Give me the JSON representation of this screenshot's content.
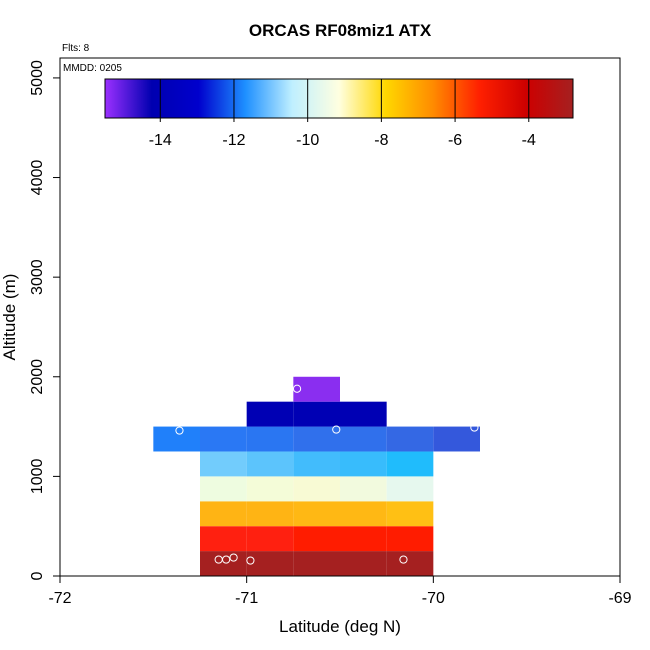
{
  "chart_data": {
    "type": "heatmap",
    "title": "ORCAS RF08miz1 ATX",
    "xlabel": "Latitude (deg N)",
    "ylabel": "Altitude (m)",
    "xlim": [
      -72,
      -69
    ],
    "ylim": [
      0,
      5200
    ],
    "x_ticks": [
      -72,
      -71,
      -70,
      -69
    ],
    "y_ticks": [
      0,
      1000,
      2000,
      3000,
      4000,
      5000
    ],
    "note_flights": "Flts: 8",
    "note_date": "MMDD: 0205",
    "colorbar": {
      "range": [
        -15.5,
        -2.8
      ],
      "ticks": [
        -14,
        -12,
        -10,
        -8,
        -6,
        -4
      ],
      "tick_labels": [
        "-14",
        "-12",
        "-10",
        "-8",
        "-6",
        "-4"
      ],
      "stops": [
        "#9b30ff",
        "#0000b0",
        "#0000cd",
        "#1e90ff",
        "#bfefff",
        "#ffffe0",
        "#ffd700",
        "#ff8c00",
        "#ff2000",
        "#cd0000",
        "#a52020"
      ]
    },
    "cells": [
      {
        "x0": -71.25,
        "x1": -71.0,
        "y0": 0,
        "y1": 250,
        "color": "#a52020"
      },
      {
        "x0": -71.0,
        "x1": -70.75,
        "y0": 0,
        "y1": 250,
        "color": "#a52020"
      },
      {
        "x0": -70.75,
        "x1": -70.5,
        "y0": 0,
        "y1": 250,
        "color": "#a52020"
      },
      {
        "x0": -70.5,
        "x1": -70.25,
        "y0": 0,
        "y1": 250,
        "color": "#a52020"
      },
      {
        "x0": -70.25,
        "x1": -70.0,
        "y0": 0,
        "y1": 250,
        "color": "#a52020"
      },
      {
        "x0": -71.25,
        "x1": -71.0,
        "y0": 250,
        "y1": 500,
        "color": "#ff2010"
      },
      {
        "x0": -71.0,
        "x1": -70.75,
        "y0": 250,
        "y1": 500,
        "color": "#ff2010"
      },
      {
        "x0": -70.75,
        "x1": -70.5,
        "y0": 250,
        "y1": 500,
        "color": "#ff1c00"
      },
      {
        "x0": -70.5,
        "x1": -70.25,
        "y0": 250,
        "y1": 500,
        "color": "#ff1c00"
      },
      {
        "x0": -70.25,
        "x1": -70.0,
        "y0": 250,
        "y1": 500,
        "color": "#ff1c00"
      },
      {
        "x0": -71.25,
        "x1": -71.0,
        "y0": 500,
        "y1": 750,
        "color": "#ffb414"
      },
      {
        "x0": -71.0,
        "x1": -70.75,
        "y0": 500,
        "y1": 750,
        "color": "#ffb414"
      },
      {
        "x0": -70.75,
        "x1": -70.5,
        "y0": 500,
        "y1": 750,
        "color": "#ffb814"
      },
      {
        "x0": -70.5,
        "x1": -70.25,
        "y0": 500,
        "y1": 750,
        "color": "#ffb814"
      },
      {
        "x0": -70.25,
        "x1": -70.0,
        "y0": 500,
        "y1": 750,
        "color": "#ffc014"
      },
      {
        "x0": -71.25,
        "x1": -71.0,
        "y0": 750,
        "y1": 1000,
        "color": "#eefce0"
      },
      {
        "x0": -71.0,
        "x1": -70.75,
        "y0": 750,
        "y1": 1000,
        "color": "#f4fcd8"
      },
      {
        "x0": -70.75,
        "x1": -70.5,
        "y0": 750,
        "y1": 1000,
        "color": "#f8fad4"
      },
      {
        "x0": -70.5,
        "x1": -70.25,
        "y0": 750,
        "y1": 1000,
        "color": "#f2fade"
      },
      {
        "x0": -70.25,
        "x1": -70.0,
        "y0": 750,
        "y1": 1000,
        "color": "#e6f8ee"
      },
      {
        "x0": -71.25,
        "x1": -71.0,
        "y0": 1000,
        "y1": 1250,
        "color": "#72ccfc"
      },
      {
        "x0": -71.0,
        "x1": -70.75,
        "y0": 1000,
        "y1": 1250,
        "color": "#5cc4fc"
      },
      {
        "x0": -70.75,
        "x1": -70.5,
        "y0": 1000,
        "y1": 1250,
        "color": "#42bcfc"
      },
      {
        "x0": -70.5,
        "x1": -70.25,
        "y0": 1000,
        "y1": 1250,
        "color": "#38bcfc"
      },
      {
        "x0": -70.25,
        "x1": -70.0,
        "y0": 1000,
        "y1": 1250,
        "color": "#20bcfc"
      },
      {
        "x0": -71.5,
        "x1": -71.25,
        "y0": 1250,
        "y1": 1500,
        "color": "#2080fa"
      },
      {
        "x0": -71.25,
        "x1": -71.0,
        "y0": 1250,
        "y1": 1500,
        "color": "#2a78f4"
      },
      {
        "x0": -71.0,
        "x1": -70.75,
        "y0": 1250,
        "y1": 1500,
        "color": "#2a76f2"
      },
      {
        "x0": -70.75,
        "x1": -70.5,
        "y0": 1250,
        "y1": 1500,
        "color": "#3070ec"
      },
      {
        "x0": -70.5,
        "x1": -70.25,
        "y0": 1250,
        "y1": 1500,
        "color": "#3070ec"
      },
      {
        "x0": -70.25,
        "x1": -70.0,
        "y0": 1250,
        "y1": 1500,
        "color": "#3468e4"
      },
      {
        "x0": -70.0,
        "x1": -69.75,
        "y0": 1250,
        "y1": 1500,
        "color": "#3458dc"
      },
      {
        "x0": -71.0,
        "x1": -70.75,
        "y0": 1500,
        "y1": 1750,
        "color": "#0000b4"
      },
      {
        "x0": -70.75,
        "x1": -70.5,
        "y0": 1500,
        "y1": 1750,
        "color": "#0000b4"
      },
      {
        "x0": -70.5,
        "x1": -70.25,
        "y0": 1500,
        "y1": 1750,
        "color": "#0000b4"
      },
      {
        "x0": -70.75,
        "x1": -70.5,
        "y0": 1750,
        "y1": 2000,
        "color": "#8a2ef0"
      }
    ],
    "points": [
      {
        "lat": -70.73,
        "alt": 1880
      },
      {
        "lat": -71.36,
        "alt": 1460
      },
      {
        "lat": -70.52,
        "alt": 1470
      },
      {
        "lat": -69.78,
        "alt": 1490
      },
      {
        "lat": -71.15,
        "alt": 165
      },
      {
        "lat": -71.11,
        "alt": 165
      },
      {
        "lat": -71.07,
        "alt": 185
      },
      {
        "lat": -70.98,
        "alt": 155
      },
      {
        "lat": -70.16,
        "alt": 165
      }
    ]
  }
}
